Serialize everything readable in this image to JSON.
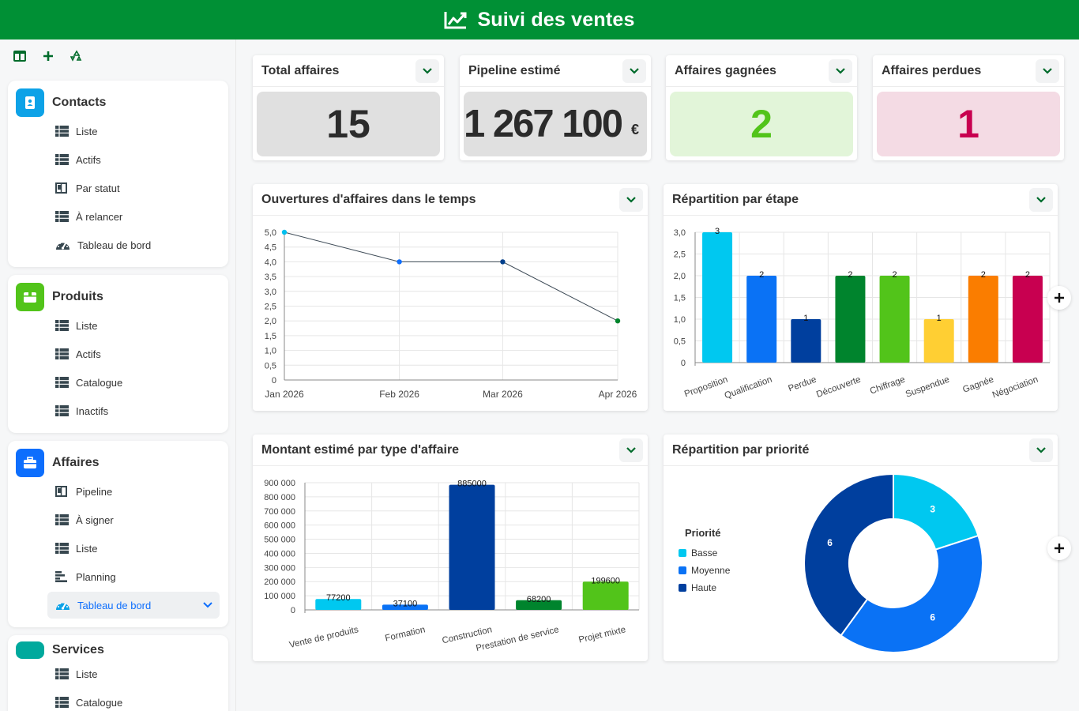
{
  "header": {
    "title": "Suivi des ventes",
    "icon": "chart-line-icon"
  },
  "sidebar": {
    "sections": [
      {
        "title": "Contacts",
        "color": "#0da2e7",
        "items": [
          "Liste",
          "Actifs",
          "Par statut",
          "À relancer",
          "Tableau de bord"
        ]
      },
      {
        "title": "Produits",
        "color": "#52c41a",
        "items": [
          "Liste",
          "Actifs",
          "Catalogue",
          "Inactifs"
        ]
      },
      {
        "title": "Affaires",
        "color": "#0d6efd",
        "items": [
          "Pipeline",
          "À signer",
          "Liste",
          "Planning",
          "Tableau de bord"
        ]
      },
      {
        "title": "Services",
        "color": "#00a99d",
        "items": [
          "Liste",
          "Catalogue"
        ]
      }
    ]
  },
  "kpis": [
    {
      "title": "Total affaires",
      "value": "15",
      "bg": "#e0e0e0",
      "color": "#2b2b2b"
    },
    {
      "title": "Pipeline estimé",
      "value": "1 267 100",
      "unit": "€",
      "bg": "#e0e0e0",
      "color": "#2b2b2b"
    },
    {
      "title": "Affaires gagnées",
      "value": "2",
      "bg": "#e2f5d9",
      "color": "#52c41a"
    },
    {
      "title": "Affaires perdues",
      "value": "1",
      "bg": "#f4dbe4",
      "color": "#c80050"
    }
  ],
  "charts": {
    "line_title": "Ouvertures d'affaires dans le temps",
    "stage_title": "Répartition par étape",
    "type_title": "Montant estimé par type d'affaire",
    "priority_title": "Répartition par priorité"
  },
  "chart_data": [
    {
      "type": "line",
      "title": "Ouvertures d'affaires dans le temps",
      "x": [
        "Jan 2026",
        "Feb 2026",
        "Mar 2026",
        "Apr 2026"
      ],
      "values": [
        5,
        4,
        4,
        2
      ],
      "point_colors": [
        "#00c0ef",
        "#0d6efd",
        "#003f8c",
        "#00842d"
      ],
      "ylim": [
        0,
        5
      ],
      "yticks": [
        "0",
        "0,5",
        "1,0",
        "1,5",
        "2,0",
        "2,5",
        "3,0",
        "3,5",
        "4,0",
        "4,5",
        "5,0"
      ],
      "grid": true
    },
    {
      "type": "bar",
      "title": "Répartition par étape",
      "categories": [
        "Proposition",
        "Qualification",
        "Perdue",
        "Découverte",
        "Chiffrage",
        "Suspendue",
        "Gagnée",
        "Négociation"
      ],
      "values": [
        3,
        2,
        1,
        2,
        2,
        1,
        2,
        2
      ],
      "colors": [
        "#00c8f0",
        "#0a72f5",
        "#003f9e",
        "#00842d",
        "#52c41a",
        "#ffcf33",
        "#fa7d00",
        "#c80050"
      ],
      "ylim": [
        0,
        3
      ],
      "yticks": [
        "0",
        "0,5",
        "1,0",
        "1,5",
        "2,0",
        "2,5",
        "3,0"
      ],
      "grid": true
    },
    {
      "type": "bar",
      "title": "Montant estimé par type d'affaire",
      "categories": [
        "Vente de produits",
        "Formation",
        "Construction",
        "Prestation de service",
        "Projet mixte"
      ],
      "values": [
        77200,
        37100,
        885000,
        68200,
        199600
      ],
      "colors": [
        "#00c8f0",
        "#0a72f5",
        "#003f9e",
        "#00842d",
        "#52c41a"
      ],
      "ylim": [
        0,
        900000
      ],
      "yticks": [
        "0",
        "100 000",
        "200 000",
        "300 000",
        "400 000",
        "500 000",
        "600 000",
        "700 000",
        "800 000",
        "900 000"
      ],
      "grid": true
    },
    {
      "type": "pie",
      "title": "Répartition par priorité",
      "legend_title": "Priorité",
      "categories": [
        "Basse",
        "Moyenne",
        "Haute"
      ],
      "values": [
        3,
        6,
        6
      ],
      "colors": [
        "#00c8f0",
        "#0a72f5",
        "#003f9e"
      ],
      "legend": "left"
    }
  ]
}
